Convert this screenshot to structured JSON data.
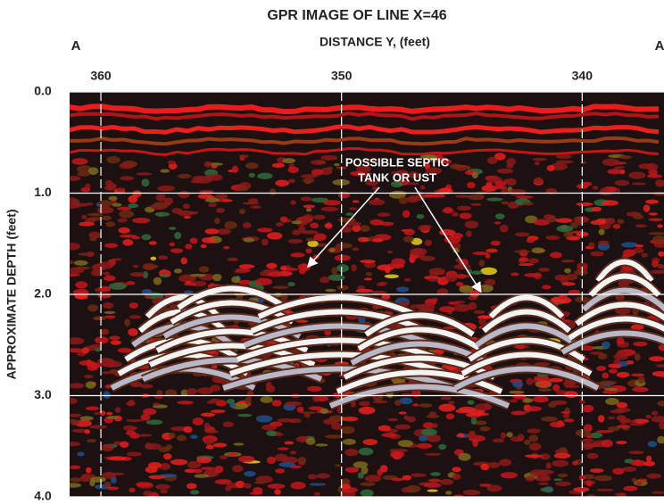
{
  "chart_data": {
    "type": "image",
    "title": "GPR IMAGE OF LINE X=46",
    "xlabel": "DISTANCE Y, (feet)",
    "ylabel": "APPROXIMATE DEPTH (feet)",
    "left_marker": "A",
    "right_marker": "A",
    "annotation": [
      "POSSIBLE SEPTIC",
      "TANK OR UST"
    ],
    "xlim": [
      361.3,
      336.6
    ],
    "xticks": [
      360,
      350,
      340
    ],
    "ylim": [
      0,
      4
    ],
    "yticks": [
      {
        "value": 0,
        "label": "0.0"
      },
      {
        "value": 1,
        "label": "1.0"
      },
      {
        "value": 2,
        "label": "2.0"
      },
      {
        "value": 3,
        "label": "3.0"
      },
      {
        "value": 4,
        "label": "4.0"
      }
    ],
    "grid": true
  }
}
